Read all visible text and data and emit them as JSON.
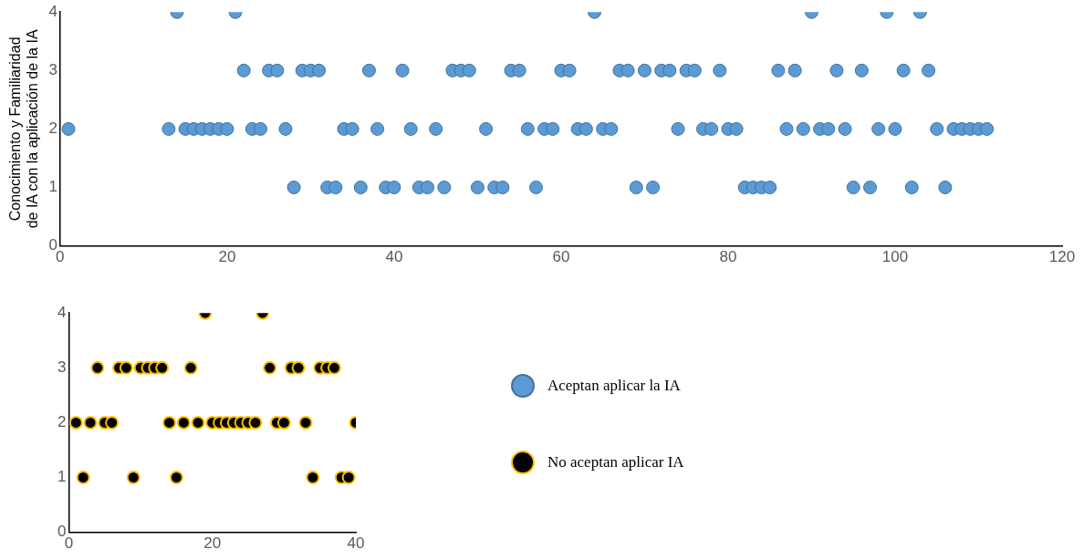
{
  "chart_data": [
    {
      "type": "scatter",
      "ylabel": "Conocimiento y Familiaridad de IA con la aplicación de la IA",
      "x": [
        1,
        2,
        3,
        4,
        5,
        6,
        7,
        8,
        9,
        10,
        11,
        12,
        13,
        14,
        15,
        16,
        17,
        18,
        19,
        20,
        21,
        22,
        23,
        24,
        25,
        26,
        27,
        28,
        29,
        30,
        31,
        32,
        33,
        34,
        35,
        36,
        37,
        38,
        39,
        40,
        41,
        42,
        43,
        44,
        45,
        46,
        47,
        48,
        49,
        50,
        51,
        52,
        53,
        54,
        55,
        56,
        57,
        58,
        59,
        60,
        61,
        62,
        63,
        64,
        65,
        66,
        67,
        68,
        69,
        70,
        71,
        72,
        73,
        74,
        75,
        76,
        77,
        78,
        79,
        80,
        81,
        82,
        83,
        84,
        85,
        86,
        87,
        88,
        89,
        90,
        91,
        92,
        93,
        94,
        95,
        96,
        97,
        98,
        99,
        100,
        101,
        102,
        103,
        104,
        105,
        106,
        107,
        108,
        109,
        110,
        111
      ],
      "xlim": [
        0,
        120
      ],
      "xticks": [
        0,
        20,
        40,
        60,
        80,
        100,
        120
      ],
      "ylim": [
        0,
        4
      ],
      "yticks": [
        0,
        1,
        2,
        3,
        4
      ],
      "grid": false,
      "marker": "circle",
      "legend": "bottom right",
      "series": [
        {
          "name": "Aceptan aplicar la IA",
          "color": "#5b9bd5",
          "values": [
            2,
            null,
            null,
            null,
            null,
            null,
            null,
            null,
            null,
            null,
            null,
            null,
            2,
            4,
            2,
            2,
            2,
            2,
            2,
            2,
            4,
            3,
            2,
            2,
            3,
            3,
            2,
            1,
            3,
            3,
            3,
            1,
            1,
            2,
            2,
            1,
            3,
            2,
            1,
            1,
            3,
            2,
            1,
            1,
            2,
            1,
            3,
            3,
            3,
            1,
            2,
            1,
            1,
            3,
            3,
            2,
            1,
            2,
            2,
            3,
            3,
            2,
            2,
            4,
            2,
            2,
            3,
            3,
            1,
            3,
            1,
            3,
            3,
            2,
            3,
            3,
            2,
            2,
            3,
            2,
            2,
            1,
            1,
            1,
            1,
            3,
            2,
            3,
            2,
            4,
            2,
            2,
            3,
            2,
            1,
            3,
            1,
            2,
            4,
            2,
            3,
            1,
            4,
            3,
            2,
            1,
            2,
            2,
            2,
            2,
            2
          ]
        }
      ]
    },
    {
      "type": "scatter",
      "x": [
        1,
        2,
        3,
        4,
        5,
        6,
        7,
        8,
        9,
        10,
        11,
        12,
        13,
        14,
        15,
        16,
        17,
        18,
        19,
        20,
        21,
        22,
        23,
        24,
        25,
        26,
        27,
        28,
        29,
        30,
        31,
        32,
        33,
        34,
        35,
        36,
        37,
        38,
        39,
        40
      ],
      "xlim": [
        0,
        40
      ],
      "xticks": [
        0,
        20,
        40
      ],
      "ylim": [
        0,
        4
      ],
      "yticks": [
        0,
        1,
        2,
        3,
        4
      ],
      "grid": false,
      "marker": "circle",
      "legend": "right",
      "series": [
        {
          "name": "No aceptan aplicar IA",
          "color": "#000000",
          "values": [
            2,
            1,
            2,
            3,
            2,
            2,
            3,
            3,
            1,
            3,
            3,
            3,
            3,
            2,
            1,
            2,
            3,
            2,
            4,
            2,
            2,
            2,
            2,
            2,
            2,
            2,
            4,
            3,
            2,
            2,
            3,
            3,
            2,
            1,
            3,
            3,
            3,
            1,
            1,
            2
          ]
        }
      ]
    }
  ]
}
